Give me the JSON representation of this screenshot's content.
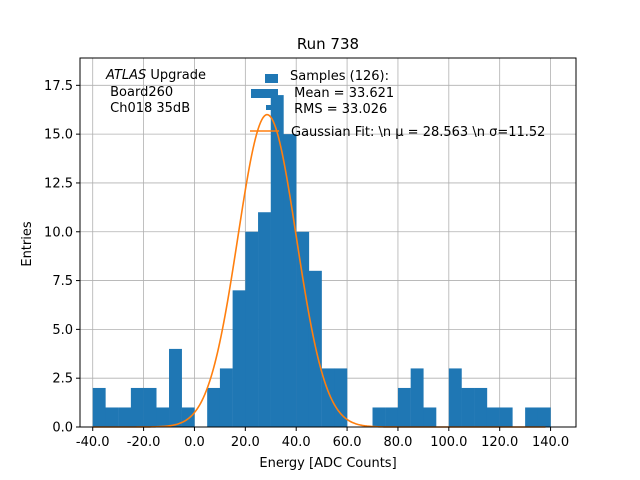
{
  "chart_data": {
    "type": "histogram",
    "title": "Run 738",
    "xlabel": "Energy [ADC Counts]",
    "ylabel": "Entries",
    "xlim": [
      -45,
      150
    ],
    "ylim": [
      0,
      18.9
    ],
    "grid": true,
    "x_ticks": [
      -40,
      -20,
      0,
      20,
      40,
      60,
      80,
      100,
      120,
      140
    ],
    "x_tick_labels": [
      "-40.0",
      "-20.0",
      "0.0",
      "20.0",
      "40.0",
      "60.0",
      "80.0",
      "100.0",
      "120.0",
      "140.0"
    ],
    "y_ticks": [
      0,
      2.5,
      5,
      7.5,
      10,
      12.5,
      15,
      17.5
    ],
    "y_tick_labels": [
      "0.0",
      "2.5",
      "5.0",
      "7.5",
      "10.0",
      "12.5",
      "15.0",
      "17.5"
    ],
    "bin_width": 5,
    "bin_start": -40,
    "counts": [
      2,
      1,
      1,
      2,
      2,
      1,
      4,
      1,
      0,
      2,
      3,
      7,
      10,
      11,
      17,
      15,
      10,
      8,
      3,
      3,
      0,
      0,
      1,
      1,
      2,
      3,
      1,
      0,
      3,
      2,
      2,
      1,
      1,
      0,
      1,
      1
    ],
    "series": [
      {
        "name": "Samples (126):\n Mean = 33.621\n RMS = 33.026",
        "kind": "histogram",
        "color": "#1f77b4"
      },
      {
        "name": "Gaussian Fit: \\n $\\mu$ = 28.563 \\n $\\sigma$=11.52",
        "kind": "line",
        "color": "#ff7f0e",
        "mu": 28.563,
        "sigma": 11.52,
        "amplitude": 16.0
      }
    ],
    "legend_placement": "top-right",
    "legend_entries": {
      "samples": [
        "Samples (126):",
        " Mean = 33.621",
        " RMS = 33.026"
      ],
      "fit": "Gaussian Fit: \\n μ = 28.563 \\n σ=11.52"
    },
    "annotation": {
      "atlas": "ATLAS",
      "upgrade": " Upgrade",
      "board": " Board260",
      "channel": " Ch018 35dB"
    }
  }
}
